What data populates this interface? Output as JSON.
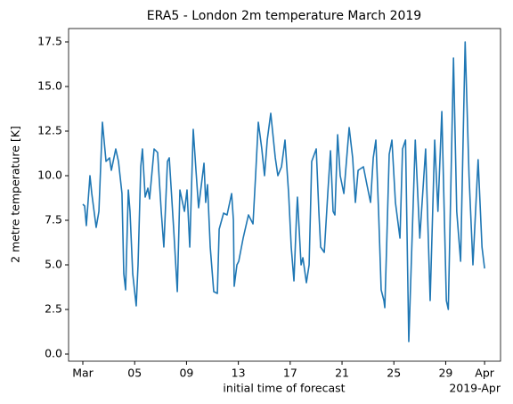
{
  "chart_data": {
    "type": "line",
    "title": "ERA5 - London 2m temperature March 2019",
    "xlabel": "initial time of forecast",
    "ylabel": "2 metre temperature [K]",
    "x_offset_label": "2019-Apr",
    "color": "#1f77b4",
    "x": [
      1.0,
      1.14,
      1.27,
      1.55,
      1.69,
      2.03,
      2.24,
      2.51,
      2.79,
      3.06,
      3.2,
      3.54,
      3.75,
      4.02,
      4.16,
      4.3,
      4.51,
      4.64,
      4.85,
      5.12,
      5.26,
      5.47,
      5.6,
      5.81,
      6.02,
      6.15,
      6.5,
      6.77,
      7.05,
      7.25,
      7.53,
      7.67,
      8.01,
      8.29,
      8.49,
      8.84,
      9.04,
      9.25,
      9.52,
      9.73,
      9.93,
      10.35,
      10.48,
      10.62,
      10.83,
      11.1,
      11.38,
      11.52,
      11.86,
      12.13,
      12.48,
      12.62,
      12.68,
      12.89,
      13.03,
      13.37,
      13.78,
      14.13,
      14.33,
      14.54,
      14.81,
      15.02,
      15.23,
      15.5,
      15.85,
      16.05,
      16.33,
      16.6,
      16.88,
      17.08,
      17.29,
      17.49,
      17.56,
      17.84,
      17.98,
      18.25,
      18.46,
      18.66,
      19.01,
      19.21,
      19.35,
      19.63,
      19.9,
      20.11,
      20.31,
      20.45,
      20.66,
      20.86,
      21.14,
      21.55,
      21.82,
      22.03,
      22.24,
      22.65,
      22.92,
      23.2,
      23.41,
      23.61,
      23.82,
      24.02,
      24.23,
      24.3,
      24.44,
      24.64,
      24.85,
      25.12,
      25.47,
      25.67,
      25.9,
      26.15,
      26.65,
      27.0,
      27.45,
      27.8,
      28.15,
      28.4,
      28.7,
      29.05,
      29.2,
      29.6,
      29.85,
      30.15,
      30.5,
      30.8,
      31.1,
      31.5,
      31.8,
      32.0
    ],
    "values": [
      8.4,
      8.3,
      7.2,
      10,
      9,
      7.1,
      8,
      13,
      10.8,
      11,
      10.3,
      11.5,
      10.8,
      9,
      4.5,
      3.6,
      9.2,
      8,
      4.5,
      2.7,
      5,
      10.5,
      11.5,
      8.8,
      9.3,
      8.7,
      11.5,
      11.3,
      8,
      6,
      10.8,
      11,
      7,
      3.5,
      9.2,
      8,
      9.2,
      6,
      12.6,
      10.3,
      8.2,
      10.7,
      8.5,
      9.5,
      6,
      3.5,
      3.4,
      7,
      7.9,
      7.8,
      9,
      7.5,
      3.8,
      5,
      5.2,
      6.5,
      7.8,
      7.3,
      10,
      13,
      11.5,
      10,
      12,
      13.5,
      11,
      10,
      10.5,
      12,
      9,
      6,
      4.1,
      7.8,
      8.8,
      5,
      5.4,
      4,
      5,
      10.8,
      11.5,
      8,
      6,
      5.7,
      9,
      11.4,
      8,
      7.8,
      12.3,
      10,
      9,
      12.7,
      11,
      8.5,
      10.3,
      10.5,
      9.5,
      8.5,
      11,
      12,
      8,
      3.6,
      3,
      2.6,
      6,
      11.2,
      12,
      8.5,
      6.5,
      11.5,
      12,
      0.7,
      12,
      6.5,
      11.5,
      3,
      12,
      8,
      13.6,
      3,
      2.5,
      16.6,
      8,
      5.2,
      17.5,
      10,
      5,
      10.9,
      6,
      4.8
    ],
    "xlim": [
      -0.1,
      33.23
    ],
    "ylim": [
      -0.4,
      18.25
    ],
    "xticks": [
      {
        "value": 1,
        "label": "Mar"
      },
      {
        "value": 5,
        "label": "05"
      },
      {
        "value": 9,
        "label": "09"
      },
      {
        "value": 13,
        "label": "13"
      },
      {
        "value": 17,
        "label": "17"
      },
      {
        "value": 21,
        "label": "21"
      },
      {
        "value": 25,
        "label": "25"
      },
      {
        "value": 29,
        "label": "29"
      },
      {
        "value": 32,
        "label": "Apr"
      }
    ],
    "yticks": [
      {
        "value": 0,
        "label": "0.0"
      },
      {
        "value": 2.5,
        "label": "2.5"
      },
      {
        "value": 5,
        "label": "5.0"
      },
      {
        "value": 7.5,
        "label": "7.5"
      },
      {
        "value": 10,
        "label": "10.0"
      },
      {
        "value": 12.5,
        "label": "12.5"
      },
      {
        "value": 15,
        "label": "15.0"
      },
      {
        "value": 17.5,
        "label": "17.5"
      }
    ]
  }
}
